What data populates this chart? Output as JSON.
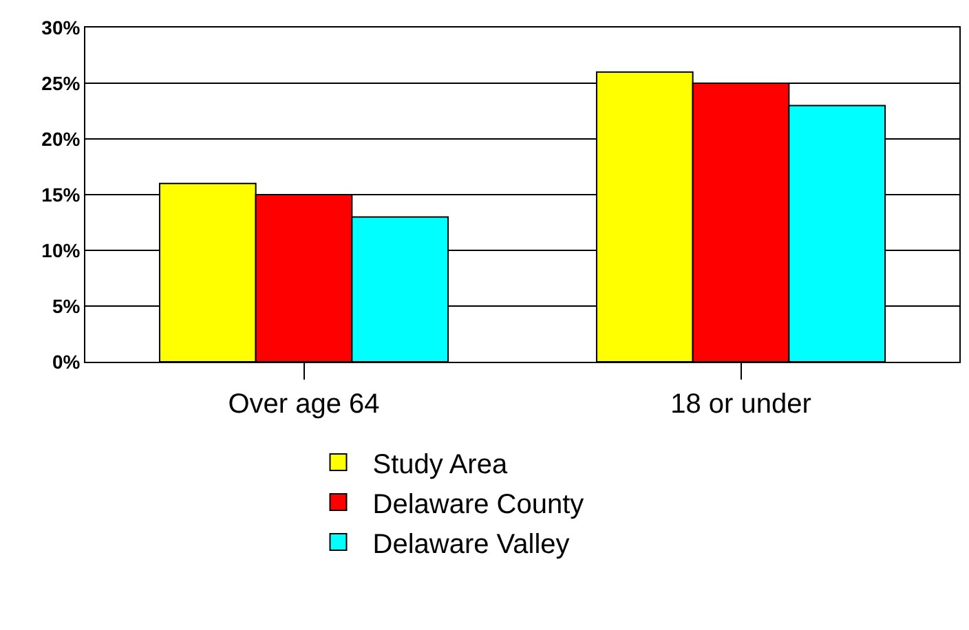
{
  "chart_data": {
    "type": "bar",
    "categories": [
      "Over age 64",
      "18 or under"
    ],
    "series": [
      {
        "name": "Study Area",
        "color": "#ffff00",
        "values": [
          16,
          26
        ]
      },
      {
        "name": "Delaware County",
        "color": "#ff0000",
        "values": [
          15,
          25
        ]
      },
      {
        "name": "Delaware Valley",
        "color": "#00ffff",
        "values": [
          13,
          23
        ]
      }
    ],
    "ylim": [
      0,
      30
    ],
    "yticks": [
      {
        "value": 0,
        "label": "0%"
      },
      {
        "value": 5,
        "label": "5%"
      },
      {
        "value": 10,
        "label": "10%"
      },
      {
        "value": 15,
        "label": "15%"
      },
      {
        "value": 20,
        "label": "20%"
      },
      {
        "value": 25,
        "label": "25%"
      },
      {
        "value": 30,
        "label": "30%"
      }
    ],
    "grid": "y",
    "legend": "bottom"
  }
}
